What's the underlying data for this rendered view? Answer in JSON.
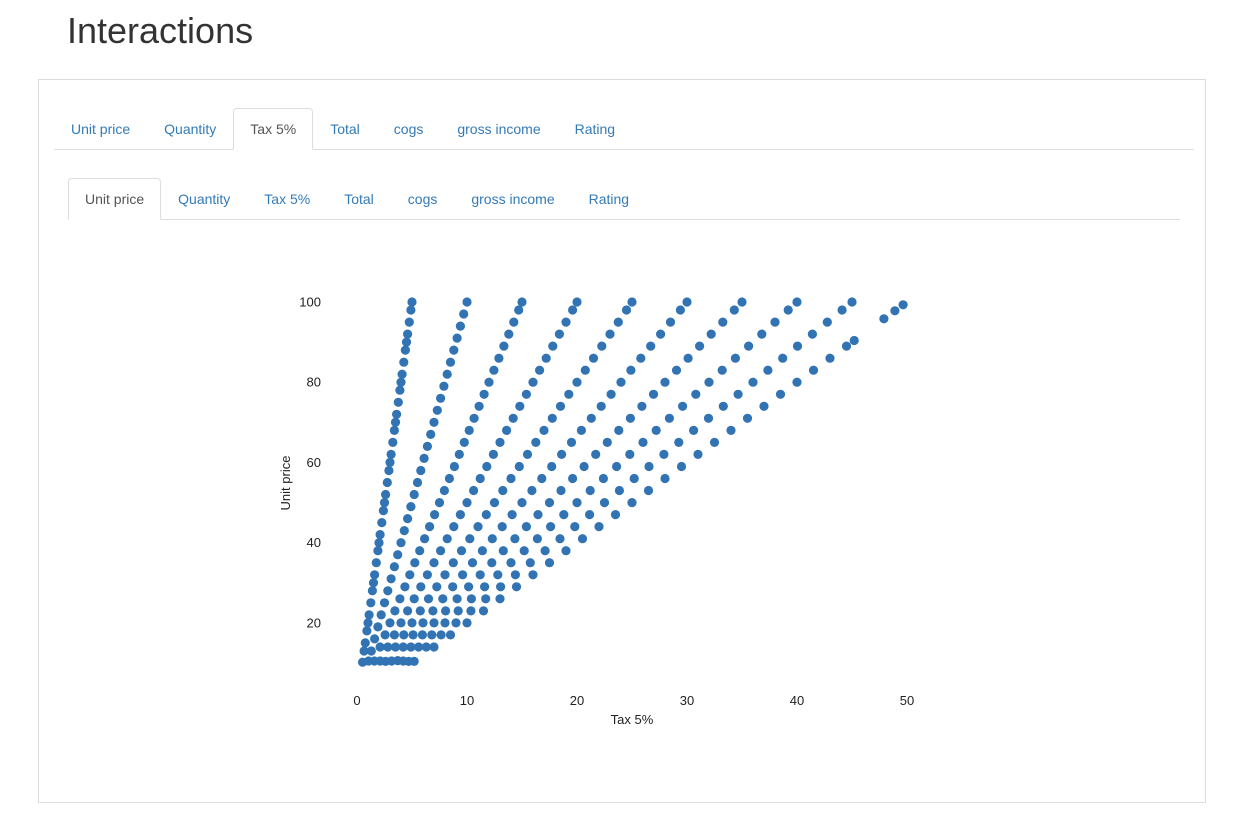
{
  "page": {
    "title": "Interactions"
  },
  "outer_tabs": {
    "active_index": 2,
    "items": [
      "Unit price",
      "Quantity",
      "Tax 5%",
      "Total",
      "cogs",
      "gross income",
      "Rating"
    ]
  },
  "inner_tabs": {
    "active_index": 0,
    "items": [
      "Unit price",
      "Quantity",
      "Tax 5%",
      "Total",
      "cogs",
      "gross income",
      "Rating"
    ]
  },
  "chart_data": {
    "type": "scatter",
    "title": "",
    "xlabel": "Tax 5%",
    "ylabel": "Unit price",
    "xlim": [
      0,
      50
    ],
    "ylim": [
      10,
      100
    ],
    "xticks": [
      0,
      10,
      20,
      30,
      40,
      50
    ],
    "yticks": [
      20,
      40,
      60,
      80,
      100
    ],
    "grid": false,
    "marker_color": "#3274b3",
    "relationship": "points lie on 10 rays: tax = 0.05 × unit price × quantity, quantity 1–10",
    "series": [
      {
        "name": "",
        "points": [
          [
            0.51,
            10.2
          ],
          [
            0.65,
            13.0
          ],
          [
            0.75,
            15.0
          ],
          [
            0.9,
            18.0
          ],
          [
            1.0,
            20.0
          ],
          [
            1.1,
            22.0
          ],
          [
            1.25,
            25.0
          ],
          [
            1.4,
            28.0
          ],
          [
            1.5,
            30.0
          ],
          [
            1.6,
            32.0
          ],
          [
            1.75,
            35.0
          ],
          [
            1.9,
            38.0
          ],
          [
            2.0,
            40.0
          ],
          [
            2.1,
            42.0
          ],
          [
            2.25,
            45.0
          ],
          [
            2.4,
            48.0
          ],
          [
            2.5,
            50.0
          ],
          [
            2.6,
            52.0
          ],
          [
            2.75,
            55.0
          ],
          [
            2.9,
            58.0
          ],
          [
            3.0,
            60.0
          ],
          [
            3.1,
            62.0
          ],
          [
            3.25,
            65.0
          ],
          [
            3.4,
            68.0
          ],
          [
            3.5,
            70.0
          ],
          [
            3.6,
            72.0
          ],
          [
            3.75,
            75.0
          ],
          [
            3.9,
            78.0
          ],
          [
            4.0,
            80.0
          ],
          [
            4.1,
            82.0
          ],
          [
            4.25,
            85.0
          ],
          [
            4.4,
            88.0
          ],
          [
            4.5,
            90.0
          ],
          [
            4.6,
            92.0
          ],
          [
            4.75,
            95.0
          ],
          [
            4.9,
            98.0
          ],
          [
            5.0,
            100.0
          ],
          [
            1.05,
            10.5
          ],
          [
            1.3,
            13.0
          ],
          [
            1.6,
            16.0
          ],
          [
            1.9,
            19.0
          ],
          [
            2.2,
            22.0
          ],
          [
            2.5,
            25.0
          ],
          [
            2.8,
            28.0
          ],
          [
            3.1,
            31.0
          ],
          [
            3.4,
            34.0
          ],
          [
            3.7,
            37.0
          ],
          [
            4.0,
            40.0
          ],
          [
            4.3,
            43.0
          ],
          [
            4.6,
            46.0
          ],
          [
            4.9,
            49.0
          ],
          [
            5.2,
            52.0
          ],
          [
            5.5,
            55.0
          ],
          [
            5.8,
            58.0
          ],
          [
            6.1,
            61.0
          ],
          [
            6.4,
            64.0
          ],
          [
            6.7,
            67.0
          ],
          [
            7.0,
            70.0
          ],
          [
            7.3,
            73.0
          ],
          [
            7.6,
            76.0
          ],
          [
            7.9,
            79.0
          ],
          [
            8.2,
            82.0
          ],
          [
            8.5,
            85.0
          ],
          [
            8.8,
            88.0
          ],
          [
            9.1,
            91.0
          ],
          [
            9.4,
            94.0
          ],
          [
            9.7,
            97.0
          ],
          [
            10.0,
            100.0
          ],
          [
            1.58,
            10.5
          ],
          [
            2.1,
            14.0
          ],
          [
            2.55,
            17.0
          ],
          [
            3.0,
            20.0
          ],
          [
            3.45,
            23.0
          ],
          [
            3.9,
            26.0
          ],
          [
            4.35,
            29.0
          ],
          [
            4.8,
            32.0
          ],
          [
            5.25,
            35.0
          ],
          [
            5.7,
            38.0
          ],
          [
            6.15,
            41.0
          ],
          [
            6.6,
            44.0
          ],
          [
            7.05,
            47.0
          ],
          [
            7.5,
            50.0
          ],
          [
            7.95,
            53.0
          ],
          [
            8.4,
            56.0
          ],
          [
            8.85,
            59.0
          ],
          [
            9.3,
            62.0
          ],
          [
            9.75,
            65.0
          ],
          [
            10.2,
            68.0
          ],
          [
            10.65,
            71.0
          ],
          [
            11.1,
            74.0
          ],
          [
            11.55,
            77.0
          ],
          [
            12.0,
            80.0
          ],
          [
            12.45,
            83.0
          ],
          [
            12.9,
            86.0
          ],
          [
            13.35,
            89.0
          ],
          [
            13.8,
            92.0
          ],
          [
            14.25,
            95.0
          ],
          [
            14.7,
            98.0
          ],
          [
            15.0,
            100.0
          ],
          [
            2.1,
            10.5
          ],
          [
            2.8,
            14.0
          ],
          [
            3.4,
            17.0
          ],
          [
            4.0,
            20.0
          ],
          [
            4.6,
            23.0
          ],
          [
            5.2,
            26.0
          ],
          [
            5.8,
            29.0
          ],
          [
            6.4,
            32.0
          ],
          [
            7.0,
            35.0
          ],
          [
            7.6,
            38.0
          ],
          [
            8.2,
            41.0
          ],
          [
            8.8,
            44.0
          ],
          [
            9.4,
            47.0
          ],
          [
            10.0,
            50.0
          ],
          [
            10.6,
            53.0
          ],
          [
            11.2,
            56.0
          ],
          [
            11.8,
            59.0
          ],
          [
            12.4,
            62.0
          ],
          [
            13.0,
            65.0
          ],
          [
            13.6,
            68.0
          ],
          [
            14.2,
            71.0
          ],
          [
            14.8,
            74.0
          ],
          [
            15.4,
            77.0
          ],
          [
            16.0,
            80.0
          ],
          [
            16.6,
            83.0
          ],
          [
            17.2,
            86.0
          ],
          [
            17.8,
            89.0
          ],
          [
            18.4,
            92.0
          ],
          [
            19.0,
            95.0
          ],
          [
            19.6,
            98.0
          ],
          [
            20.0,
            100.0
          ],
          [
            2.6,
            10.4
          ],
          [
            3.5,
            14.0
          ],
          [
            4.25,
            17.0
          ],
          [
            5.0,
            20.0
          ],
          [
            5.75,
            23.0
          ],
          [
            6.5,
            26.0
          ],
          [
            7.25,
            29.0
          ],
          [
            8.0,
            32.0
          ],
          [
            8.75,
            35.0
          ],
          [
            9.5,
            38.0
          ],
          [
            10.25,
            41.0
          ],
          [
            11.0,
            44.0
          ],
          [
            11.75,
            47.0
          ],
          [
            12.5,
            50.0
          ],
          [
            13.25,
            53.0
          ],
          [
            14.0,
            56.0
          ],
          [
            14.75,
            59.0
          ],
          [
            15.5,
            62.0
          ],
          [
            16.25,
            65.0
          ],
          [
            17.0,
            68.0
          ],
          [
            17.75,
            71.0
          ],
          [
            18.5,
            74.0
          ],
          [
            19.25,
            77.0
          ],
          [
            20.0,
            80.0
          ],
          [
            20.75,
            83.0
          ],
          [
            21.5,
            86.0
          ],
          [
            22.25,
            89.0
          ],
          [
            23.0,
            92.0
          ],
          [
            23.75,
            95.0
          ],
          [
            24.5,
            98.0
          ],
          [
            25.0,
            100.0
          ],
          [
            3.15,
            10.5
          ],
          [
            4.2,
            14.0
          ],
          [
            5.1,
            17.0
          ],
          [
            6.0,
            20.0
          ],
          [
            6.9,
            23.0
          ],
          [
            7.8,
            26.0
          ],
          [
            8.7,
            29.0
          ],
          [
            9.6,
            32.0
          ],
          [
            10.5,
            35.0
          ],
          [
            11.4,
            38.0
          ],
          [
            12.3,
            41.0
          ],
          [
            13.2,
            44.0
          ],
          [
            14.1,
            47.0
          ],
          [
            15.0,
            50.0
          ],
          [
            15.9,
            53.0
          ],
          [
            16.8,
            56.0
          ],
          [
            17.7,
            59.0
          ],
          [
            18.6,
            62.0
          ],
          [
            19.5,
            65.0
          ],
          [
            20.4,
            68.0
          ],
          [
            21.3,
            71.0
          ],
          [
            22.2,
            74.0
          ],
          [
            23.1,
            77.0
          ],
          [
            24.0,
            80.0
          ],
          [
            24.9,
            83.0
          ],
          [
            25.8,
            86.0
          ],
          [
            26.7,
            89.0
          ],
          [
            27.6,
            92.0
          ],
          [
            28.5,
            95.0
          ],
          [
            29.4,
            98.0
          ],
          [
            30.0,
            100.0
          ],
          [
            3.7,
            10.6
          ],
          [
            4.9,
            14.0
          ],
          [
            5.95,
            17.0
          ],
          [
            7.0,
            20.0
          ],
          [
            8.05,
            23.0
          ],
          [
            9.1,
            26.0
          ],
          [
            10.15,
            29.0
          ],
          [
            11.2,
            32.0
          ],
          [
            12.25,
            35.0
          ],
          [
            13.3,
            38.0
          ],
          [
            14.35,
            41.0
          ],
          [
            15.4,
            44.0
          ],
          [
            16.45,
            47.0
          ],
          [
            17.5,
            50.0
          ],
          [
            18.55,
            53.0
          ],
          [
            19.6,
            56.0
          ],
          [
            20.65,
            59.0
          ],
          [
            21.7,
            62.0
          ],
          [
            22.75,
            65.0
          ],
          [
            23.8,
            68.0
          ],
          [
            24.85,
            71.0
          ],
          [
            25.9,
            74.0
          ],
          [
            26.95,
            77.0
          ],
          [
            28.0,
            80.0
          ],
          [
            29.05,
            83.0
          ],
          [
            30.1,
            86.0
          ],
          [
            31.15,
            89.0
          ],
          [
            32.2,
            92.0
          ],
          [
            33.25,
            95.0
          ],
          [
            34.3,
            98.0
          ],
          [
            35.0,
            100.0
          ],
          [
            4.2,
            10.5
          ],
          [
            5.6,
            14.0
          ],
          [
            6.8,
            17.0
          ],
          [
            8.0,
            20.0
          ],
          [
            9.2,
            23.0
          ],
          [
            10.4,
            26.0
          ],
          [
            11.6,
            29.0
          ],
          [
            12.8,
            32.0
          ],
          [
            14.0,
            35.0
          ],
          [
            15.2,
            38.0
          ],
          [
            16.4,
            41.0
          ],
          [
            17.6,
            44.0
          ],
          [
            18.8,
            47.0
          ],
          [
            20.0,
            50.0
          ],
          [
            21.2,
            53.0
          ],
          [
            22.4,
            56.0
          ],
          [
            23.6,
            59.0
          ],
          [
            24.8,
            62.0
          ],
          [
            26.0,
            65.0
          ],
          [
            27.2,
            68.0
          ],
          [
            28.4,
            71.0
          ],
          [
            29.6,
            74.0
          ],
          [
            30.8,
            77.0
          ],
          [
            32.0,
            80.0
          ],
          [
            33.2,
            83.0
          ],
          [
            34.4,
            86.0
          ],
          [
            35.6,
            89.0
          ],
          [
            36.8,
            92.0
          ],
          [
            38.0,
            95.0
          ],
          [
            39.2,
            98.0
          ],
          [
            40.0,
            100.0
          ],
          [
            4.7,
            10.4
          ],
          [
            6.3,
            14.0
          ],
          [
            7.65,
            17.0
          ],
          [
            9.0,
            20.0
          ],
          [
            10.35,
            23.0
          ],
          [
            11.7,
            26.0
          ],
          [
            13.05,
            29.0
          ],
          [
            14.4,
            32.0
          ],
          [
            15.75,
            35.0
          ],
          [
            17.1,
            38.0
          ],
          [
            18.45,
            41.0
          ],
          [
            19.8,
            44.0
          ],
          [
            21.15,
            47.0
          ],
          [
            22.5,
            50.0
          ],
          [
            23.85,
            53.0
          ],
          [
            25.2,
            56.0
          ],
          [
            26.55,
            59.0
          ],
          [
            27.9,
            62.0
          ],
          [
            29.25,
            65.0
          ],
          [
            30.6,
            68.0
          ],
          [
            31.95,
            71.0
          ],
          [
            33.3,
            74.0
          ],
          [
            34.65,
            77.0
          ],
          [
            36.0,
            80.0
          ],
          [
            37.35,
            83.0
          ],
          [
            38.7,
            86.0
          ],
          [
            40.05,
            89.0
          ],
          [
            41.4,
            92.0
          ],
          [
            42.75,
            95.0
          ],
          [
            44.1,
            98.0
          ],
          [
            45.0,
            100.0
          ],
          [
            5.2,
            10.4
          ],
          [
            7.0,
            14.0
          ],
          [
            8.5,
            17.0
          ],
          [
            10.0,
            20.0
          ],
          [
            11.5,
            23.0
          ],
          [
            13.0,
            26.0
          ],
          [
            14.5,
            29.0
          ],
          [
            16.0,
            32.0
          ],
          [
            17.5,
            35.0
          ],
          [
            19.0,
            38.0
          ],
          [
            20.5,
            41.0
          ],
          [
            22.0,
            44.0
          ],
          [
            23.5,
            47.0
          ],
          [
            25.0,
            50.0
          ],
          [
            26.5,
            53.0
          ],
          [
            28.0,
            56.0
          ],
          [
            29.5,
            59.0
          ],
          [
            31.0,
            62.0
          ],
          [
            32.5,
            65.0
          ],
          [
            34.0,
            68.0
          ],
          [
            35.5,
            71.0
          ],
          [
            37.0,
            74.0
          ],
          [
            38.5,
            77.0
          ],
          [
            40.0,
            80.0
          ],
          [
            41.5,
            83.0
          ],
          [
            43.0,
            86.0
          ],
          [
            44.5,
            89.0
          ],
          [
            45.2,
            90.4
          ],
          [
            47.9,
            95.8
          ],
          [
            48.9,
            97.8
          ],
          [
            49.65,
            99.3
          ]
        ]
      }
    ]
  }
}
